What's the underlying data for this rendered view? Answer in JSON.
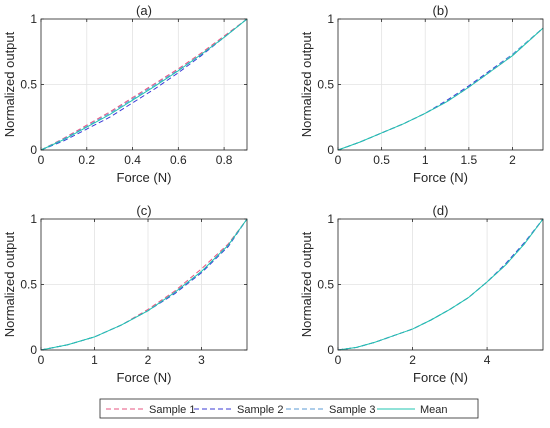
{
  "chart_data": [
    {
      "type": "line",
      "title": "(a)",
      "xlabel": "Force (N)",
      "ylabel": "Normalized output",
      "xlim": [
        0,
        0.9
      ],
      "ylim": [
        0,
        1
      ],
      "xticks": [
        0,
        0.2,
        0.4,
        0.6,
        0.8
      ],
      "xtick_labels": [
        "0",
        "0.2",
        "0.4",
        "0.6",
        "0.8"
      ],
      "yticks": [
        0,
        0.5,
        1
      ],
      "ytick_labels": [
        "0",
        "0.5",
        "1"
      ],
      "grid": true,
      "x": [
        0,
        0.1,
        0.2,
        0.3,
        0.4,
        0.5,
        0.6,
        0.7,
        0.8,
        0.9
      ],
      "series": [
        {
          "name": "Sample 1",
          "values": [
            0,
            0.09,
            0.19,
            0.29,
            0.4,
            0.51,
            0.62,
            0.74,
            0.87,
            1.0
          ]
        },
        {
          "name": "Sample 2",
          "values": [
            0,
            0.07,
            0.16,
            0.25,
            0.36,
            0.47,
            0.59,
            0.72,
            0.86,
            1.0
          ]
        },
        {
          "name": "Sample 3",
          "values": [
            0,
            0.085,
            0.18,
            0.28,
            0.39,
            0.5,
            0.61,
            0.73,
            0.86,
            1.0
          ]
        },
        {
          "name": "Mean",
          "values": [
            0,
            0.08,
            0.175,
            0.27,
            0.38,
            0.49,
            0.605,
            0.73,
            0.86,
            1.0
          ]
        }
      ]
    },
    {
      "type": "line",
      "title": "(b)",
      "xlabel": "Force (N)",
      "ylabel": "Normalized output",
      "xlim": [
        0,
        2.35
      ],
      "ylim": [
        0,
        1
      ],
      "xticks": [
        0,
        0.5,
        1,
        1.5,
        2
      ],
      "xtick_labels": [
        "0",
        "0.5",
        "1",
        "1.5",
        "2"
      ],
      "yticks": [
        0,
        0.5,
        1
      ],
      "ytick_labels": [
        "0",
        "0.5",
        "1"
      ],
      "grid": true,
      "x": [
        0,
        0.25,
        0.5,
        0.75,
        1.0,
        1.25,
        1.5,
        1.75,
        2.0,
        2.35
      ],
      "series": [
        {
          "name": "Sample 1",
          "values": [
            0,
            0.06,
            0.13,
            0.2,
            0.28,
            0.37,
            0.48,
            0.6,
            0.72,
            0.93
          ]
        },
        {
          "name": "Sample 2",
          "values": [
            0,
            0.06,
            0.13,
            0.2,
            0.28,
            0.38,
            0.49,
            0.61,
            0.73,
            0.93
          ]
        },
        {
          "name": "Sample 3",
          "values": [
            0,
            0.06,
            0.13,
            0.2,
            0.28,
            0.37,
            0.48,
            0.6,
            0.73,
            0.93
          ]
        },
        {
          "name": "Mean",
          "values": [
            0,
            0.06,
            0.13,
            0.2,
            0.28,
            0.37,
            0.48,
            0.6,
            0.72,
            0.93
          ]
        }
      ]
    },
    {
      "type": "line",
      "title": "(c)",
      "xlabel": "Force (N)",
      "ylabel": "Normalized output",
      "xlim": [
        0,
        3.85
      ],
      "ylim": [
        0,
        1
      ],
      "xticks": [
        0,
        1,
        2,
        3
      ],
      "xtick_labels": [
        "0",
        "1",
        "2",
        "3"
      ],
      "yticks": [
        0,
        0.5,
        1
      ],
      "ytick_labels": [
        "0",
        "0.5",
        "1"
      ],
      "grid": true,
      "x": [
        0,
        0.5,
        1.0,
        1.5,
        2.0,
        2.5,
        3.0,
        3.5,
        3.85
      ],
      "series": [
        {
          "name": "Sample 1",
          "values": [
            0,
            0.04,
            0.1,
            0.19,
            0.31,
            0.45,
            0.62,
            0.81,
            1.0
          ]
        },
        {
          "name": "Sample 2",
          "values": [
            0,
            0.04,
            0.1,
            0.19,
            0.3,
            0.43,
            0.59,
            0.79,
            1.0
          ]
        },
        {
          "name": "Sample 3",
          "values": [
            0,
            0.04,
            0.1,
            0.19,
            0.3,
            0.44,
            0.6,
            0.8,
            1.0
          ]
        },
        {
          "name": "Mean",
          "values": [
            0,
            0.04,
            0.1,
            0.19,
            0.3,
            0.44,
            0.6,
            0.8,
            1.0
          ]
        }
      ]
    },
    {
      "type": "line",
      "title": "(d)",
      "xlabel": "Force (N)",
      "ylabel": "Normalized output",
      "xlim": [
        0,
        5.5
      ],
      "ylim": [
        0,
        1
      ],
      "xticks": [
        0,
        2,
        4
      ],
      "xtick_labels": [
        "0",
        "2",
        "4"
      ],
      "yticks": [
        0,
        0.5,
        1
      ],
      "ytick_labels": [
        "0",
        "0.5",
        "1"
      ],
      "grid": true,
      "x": [
        0,
        0.5,
        1.0,
        1.5,
        2.0,
        2.5,
        3.0,
        3.5,
        4.0,
        4.5,
        5.0,
        5.5
      ],
      "series": [
        {
          "name": "Sample 1",
          "values": [
            0,
            0.02,
            0.06,
            0.11,
            0.16,
            0.23,
            0.31,
            0.4,
            0.52,
            0.65,
            0.81,
            1.0
          ]
        },
        {
          "name": "Sample 2",
          "values": [
            0,
            0.02,
            0.06,
            0.11,
            0.16,
            0.23,
            0.31,
            0.4,
            0.52,
            0.66,
            0.82,
            1.0
          ]
        },
        {
          "name": "Sample 3",
          "values": [
            0,
            0.02,
            0.06,
            0.11,
            0.16,
            0.23,
            0.31,
            0.4,
            0.52,
            0.65,
            0.81,
            1.0
          ]
        },
        {
          "name": "Mean",
          "values": [
            0,
            0.02,
            0.06,
            0.11,
            0.16,
            0.23,
            0.31,
            0.4,
            0.52,
            0.65,
            0.81,
            1.0
          ]
        }
      ]
    }
  ],
  "legend": {
    "placement": "bottom",
    "entries": [
      {
        "name": "Sample 1",
        "color": "#e75480",
        "style": "dashed"
      },
      {
        "name": "Sample 2",
        "color": "#3b3bd6",
        "style": "dashed"
      },
      {
        "name": "Sample 3",
        "color": "#5b9bd5",
        "style": "dashed"
      },
      {
        "name": "Mean",
        "color": "#20c4b0",
        "style": "solid"
      }
    ]
  }
}
